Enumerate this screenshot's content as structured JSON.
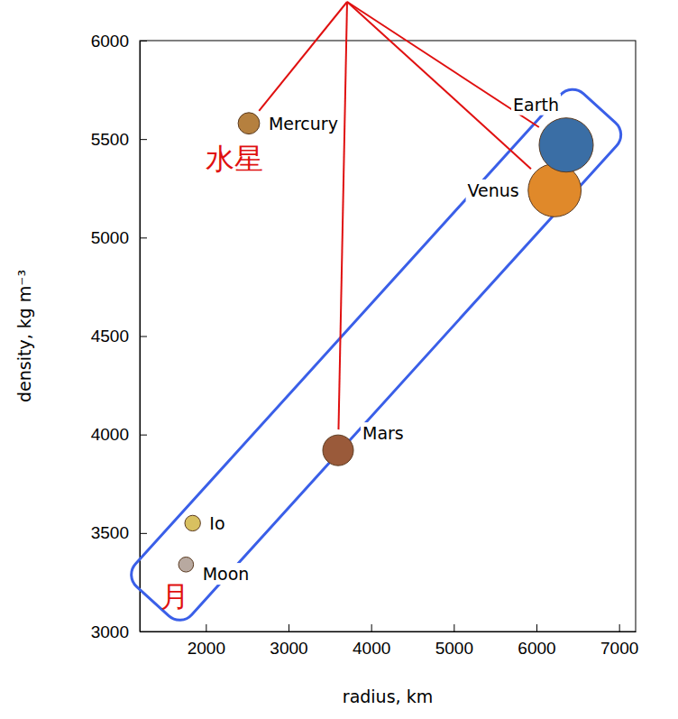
{
  "chart_data": {
    "type": "scatter",
    "x_label": "radius, km",
    "y_label": "density, kg m⁻³",
    "labels": [
      "Mercury",
      "Venus",
      "Earth",
      "Mars",
      "Io",
      "Moon"
    ],
    "x": [
      2520,
      6220,
      6360,
      3600,
      1840,
      1760
    ],
    "values": [
      5580,
      5240,
      5470,
      3920,
      3550,
      3340
    ],
    "colors": [
      "#b5803f",
      "#e0892a",
      "#3a6ea5",
      "#9a5a3a",
      "#d8c060",
      "#b8a9a0"
    ],
    "marker": "circle",
    "xlim": [
      1200,
      7200
    ],
    "ylim": [
      3000,
      6000
    ],
    "xticks": [
      2000,
      3000,
      4000,
      5000,
      6000,
      7000
    ],
    "yticks": [
      3000,
      3500,
      4000,
      4500,
      5000,
      5500,
      6000
    ],
    "grid": false,
    "annotations": [
      {
        "text": "水星",
        "point": "Mercury"
      },
      {
        "text": "月",
        "point": "Moon"
      }
    ]
  }
}
